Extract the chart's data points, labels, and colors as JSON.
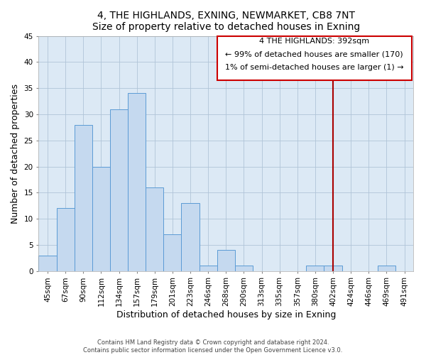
{
  "title": "4, THE HIGHLANDS, EXNING, NEWMARKET, CB8 7NT",
  "subtitle": "Size of property relative to detached houses in Exning",
  "xlabel": "Distribution of detached houses by size in Exning",
  "ylabel": "Number of detached properties",
  "bar_labels": [
    "45sqm",
    "67sqm",
    "90sqm",
    "112sqm",
    "134sqm",
    "157sqm",
    "179sqm",
    "201sqm",
    "223sqm",
    "246sqm",
    "268sqm",
    "290sqm",
    "313sqm",
    "335sqm",
    "357sqm",
    "380sqm",
    "402sqm",
    "424sqm",
    "446sqm",
    "469sqm",
    "491sqm"
  ],
  "bar_values": [
    3,
    12,
    28,
    20,
    31,
    34,
    16,
    7,
    13,
    1,
    4,
    1,
    0,
    0,
    0,
    1,
    1,
    0,
    0,
    1,
    0
  ],
  "bar_color": "#c5d9ef",
  "bar_edge_color": "#5b9bd5",
  "ylim": [
    0,
    45
  ],
  "yticks": [
    0,
    5,
    10,
    15,
    20,
    25,
    30,
    35,
    40,
    45
  ],
  "vline_x_index": 16,
  "vline_color": "#aa0000",
  "annotation_line1": "4 THE HIGHLANDS: 392sqm",
  "annotation_line2": "← 99% of detached houses are smaller (170)",
  "annotation_line3": "1% of semi-detached houses are larger (1) →",
  "footer_line1": "Contains HM Land Registry data © Crown copyright and database right 2024.",
  "footer_line2": "Contains public sector information licensed under the Open Government Licence v3.0.",
  "title_fontsize": 10,
  "subtitle_fontsize": 9,
  "axis_label_fontsize": 9,
  "tick_fontsize": 7.5,
  "annotation_fontsize": 8,
  "footer_fontsize": 6,
  "bg_color": "#dce9f5",
  "fig_bg_color": "#ffffff",
  "grid_color": "#b0c4d8"
}
